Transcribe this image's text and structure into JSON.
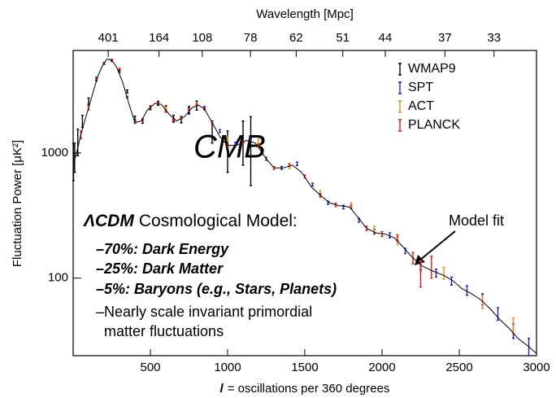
{
  "chart_data": {
    "type": "errorbar",
    "xlabel": {
      "symbol": "l",
      "text": "= oscillations per 360 degrees"
    },
    "ylabel": "Fluctuation Power [μK²]",
    "x2label": "Wavelength [Mpc]",
    "xlim": [
      0,
      3000
    ],
    "xticks": [
      500,
      1000,
      1500,
      2000,
      2500,
      3000
    ],
    "ylim": [
      24,
      6600
    ],
    "yticks": [
      100,
      1000
    ],
    "log_y": true,
    "x2ticks": [
      {
        "value": 227,
        "label": "401"
      },
      {
        "value": 556,
        "label": "164"
      },
      {
        "value": 836,
        "label": "108"
      },
      {
        "value": 1148,
        "label": "78"
      },
      {
        "value": 1444,
        "label": "62"
      },
      {
        "value": 1746,
        "label": "51"
      },
      {
        "value": 2021,
        "label": "44"
      },
      {
        "value": 2407,
        "label": "37"
      },
      {
        "value": 2725,
        "label": "33"
      }
    ],
    "legend": "upper right",
    "series": [
      {
        "name": "WMAP9",
        "color": "#000000",
        "x": [
          2,
          10,
          30,
          60,
          100,
          150,
          200,
          250,
          300,
          350,
          400,
          450,
          500,
          550,
          600,
          650,
          700,
          750,
          800,
          900,
          1000,
          1100,
          1150
        ],
        "values": [
          900,
          950,
          1250,
          1800,
          2600,
          3900,
          5200,
          5500,
          4500,
          3100,
          1900,
          1800,
          2300,
          2500,
          2300,
          1900,
          1850,
          2200,
          2400,
          1500,
          1100,
          1300,
          1250
        ],
        "errors": [
          300,
          250,
          300,
          200,
          150,
          120,
          100,
          100,
          90,
          80,
          70,
          70,
          80,
          90,
          90,
          100,
          110,
          150,
          200,
          300,
          400,
          500,
          700
        ]
      },
      {
        "name": "SPT",
        "color": "#1f1fd0",
        "x": [
          650,
          750,
          850,
          950,
          1050,
          1150,
          1250,
          1350,
          1450,
          1550,
          1650,
          1750,
          1850,
          1950,
          2050,
          2150,
          2250,
          2350,
          2450,
          2550,
          2650,
          2750,
          2850,
          2950
        ],
        "values": [
          1800,
          2150,
          2300,
          1500,
          1180,
          1270,
          900,
          760,
          820,
          560,
          400,
          370,
          290,
          235,
          220,
          165,
          125,
          110,
          95,
          80,
          68,
          52,
          38,
          28
        ],
        "errors": [
          40,
          50,
          60,
          40,
          35,
          35,
          25,
          20,
          25,
          15,
          12,
          12,
          10,
          10,
          10,
          8,
          8,
          8,
          7,
          7,
          7,
          6,
          5,
          5
        ]
      },
      {
        "name": "ACT",
        "color": "#f08a1c",
        "x": [
          600,
          800,
          1000,
          1200,
          1400,
          1600,
          1800,
          1950,
          2100,
          2250,
          2400,
          2650,
          2850
        ],
        "values": [
          2250,
          2450,
          1300,
          1250,
          780,
          480,
          380,
          245,
          200,
          125,
          110,
          65,
          42
        ],
        "errors": [
          60,
          70,
          50,
          50,
          30,
          20,
          20,
          15,
          15,
          12,
          12,
          8,
          6
        ]
      },
      {
        "name": "PLANCK",
        "color": "#e01818",
        "x": [
          50,
          100,
          150,
          200,
          250,
          300,
          350,
          400,
          450,
          500,
          550,
          600,
          650,
          700,
          750,
          800,
          850,
          900,
          1000,
          1100,
          1200,
          1300,
          1400,
          1500,
          1600,
          1700,
          1800,
          1900,
          2000,
          2100,
          2200,
          2250,
          2320
        ],
        "values": [
          1400,
          2300,
          3900,
          5200,
          5500,
          4700,
          2800,
          1750,
          1850,
          2350,
          2500,
          2150,
          1850,
          1900,
          2250,
          2420,
          2250,
          1750,
          1150,
          1220,
          1150,
          760,
          800,
          650,
          460,
          385,
          370,
          250,
          225,
          210,
          145,
          110,
          125
        ],
        "errors": [
          100,
          90,
          80,
          70,
          70,
          60,
          40,
          30,
          30,
          35,
          40,
          35,
          30,
          30,
          35,
          40,
          40,
          30,
          25,
          25,
          25,
          20,
          20,
          18,
          15,
          12,
          12,
          10,
          10,
          12,
          15,
          25,
          25
        ]
      }
    ],
    "model": {
      "color": "#000000",
      "x": [
        2,
        10,
        30,
        50,
        80,
        100,
        130,
        160,
        190,
        220,
        250,
        280,
        320,
        360,
        400,
        440,
        480,
        530,
        570,
        620,
        670,
        720,
        770,
        810,
        850,
        900,
        950,
        1000,
        1060,
        1120,
        1180,
        1250,
        1300,
        1360,
        1420,
        1480,
        1540,
        1600,
        1660,
        1720,
        1790,
        1850,
        1900,
        1960,
        2020,
        2080,
        2140,
        2200,
        2260,
        2320,
        2400,
        2460,
        2520,
        2580,
        2640,
        2700,
        2760,
        2820,
        2880,
        2940,
        3000
      ],
      "values": [
        850,
        880,
        1100,
        1400,
        1900,
        2300,
        3100,
        4100,
        5000,
        5650,
        5500,
        4900,
        3700,
        2500,
        1750,
        1800,
        2200,
        2500,
        2450,
        2050,
        1800,
        1950,
        2300,
        2420,
        2250,
        1750,
        1350,
        1150,
        1150,
        1260,
        1200,
        900,
        760,
        760,
        800,
        700,
        540,
        460,
        400,
        380,
        370,
        300,
        250,
        230,
        225,
        210,
        175,
        145,
        125,
        115,
        105,
        95,
        82,
        75,
        67,
        57,
        47,
        40,
        33,
        29,
        25
      ]
    },
    "annotations": {
      "cmb": "CMB",
      "model_fit": "Model fit",
      "model_title": {
        "symbol": "ΛCDM",
        "text": "Cosmological Model:"
      },
      "bullets": [
        {
          "text": "–70%: Dark Energy",
          "bold": true
        },
        {
          "text": "–25%: Dark Matter",
          "bold": true
        },
        {
          "text": "–5%: Baryons (e.g., Stars, Planets)",
          "bold": true
        },
        {
          "text": "–Nearly scale invariant primordial",
          "bold": false
        },
        {
          "text": "matter fluctuations",
          "bold": false
        }
      ]
    }
  }
}
